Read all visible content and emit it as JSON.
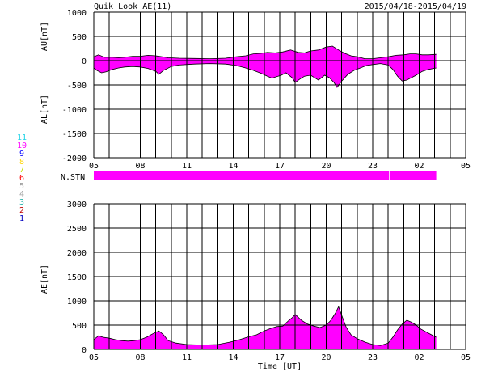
{
  "header": {
    "title": "Quik Look AE(11)",
    "date_range": "2015/04/18-2015/04/19"
  },
  "colors": {
    "fill": "#ff00ff",
    "grid": "#000000",
    "background": "#ffffff",
    "stn_marker": "#ffe0ff"
  },
  "station_legend": {
    "items": [
      {
        "label": "11",
        "color": "#22d3e6"
      },
      {
        "label": "10",
        "color": "#ff00ff"
      },
      {
        "label": "9",
        "color": "#0000ff"
      },
      {
        "label": "8",
        "color": "#ffd400"
      },
      {
        "label": "7",
        "color": "#c0e000"
      },
      {
        "label": "6",
        "color": "#ff0000"
      },
      {
        "label": "5",
        "color": "#a0a0a0"
      },
      {
        "label": "4",
        "color": "#a0a0a0"
      },
      {
        "label": "3",
        "color": "#20b2aa"
      },
      {
        "label": "2",
        "color": "#c00000"
      },
      {
        "label": "1",
        "color": "#0000c0"
      }
    ]
  },
  "nstn": {
    "label": "N.STN",
    "start_hour": 5,
    "end_hour": 27.1,
    "marker_hour": 24.05
  },
  "chart_data": [
    {
      "type": "area",
      "title": "",
      "ylabel_top": "AU[nT]",
      "ylabel_bottom": "AL[nT]",
      "xlabel": "",
      "xlim": [
        5,
        29
      ],
      "ylim": [
        -2000,
        1000
      ],
      "ytick_values": [
        1000,
        500,
        0,
        -500,
        -1000,
        -1500,
        -2000
      ],
      "xtick_labels": [
        "05",
        "08",
        "11",
        "14",
        "17",
        "20",
        "23",
        "02",
        "05"
      ],
      "series": [
        {
          "role": "AU",
          "x": [
            5.0,
            5.3,
            5.7,
            6.2,
            6.6,
            7.0,
            7.5,
            8.0,
            8.5,
            9.0,
            9.4,
            9.8,
            10.5,
            11.5,
            12.5,
            13.5,
            14.2,
            14.8,
            15.3,
            15.8,
            16.2,
            16.7,
            17.2,
            17.7,
            18.2,
            18.6,
            19.0,
            19.5,
            20.0,
            20.4,
            20.8,
            21.2,
            21.6,
            22.0,
            22.5,
            23.0,
            23.5,
            24.0,
            24.5,
            25.0,
            25.4,
            25.8,
            26.2,
            26.6,
            27.1
          ],
          "values": [
            80,
            120,
            70,
            70,
            60,
            70,
            90,
            90,
            110,
            100,
            80,
            60,
            50,
            45,
            40,
            50,
            80,
            100,
            140,
            150,
            170,
            160,
            180,
            220,
            170,
            160,
            200,
            220,
            280,
            300,
            220,
            150,
            100,
            80,
            40,
            40,
            60,
            80,
            110,
            120,
            140,
            140,
            120,
            120,
            130
          ]
        },
        {
          "role": "AL",
          "x": [
            5.0,
            5.2,
            5.5,
            5.8,
            6.2,
            6.6,
            7.0,
            7.5,
            8.0,
            8.5,
            9.0,
            9.2,
            9.5,
            10.0,
            10.5,
            11.5,
            12.5,
            13.5,
            14.2,
            14.8,
            15.3,
            15.8,
            16.2,
            16.5,
            16.8,
            17.1,
            17.4,
            17.8,
            18.0,
            18.3,
            18.6,
            19.0,
            19.5,
            19.9,
            20.2,
            20.5,
            20.7,
            21.0,
            21.4,
            21.8,
            22.2,
            22.6,
            23.0,
            23.5,
            24.0,
            24.3,
            24.6,
            24.9,
            25.2,
            25.5,
            25.8,
            26.2,
            26.6,
            27.1
          ],
          "values": [
            -150,
            -200,
            -250,
            -230,
            -180,
            -150,
            -130,
            -120,
            -130,
            -160,
            -220,
            -280,
            -200,
            -120,
            -90,
            -70,
            -60,
            -70,
            -100,
            -150,
            -200,
            -260,
            -320,
            -360,
            -330,
            -300,
            -250,
            -350,
            -450,
            -380,
            -320,
            -300,
            -400,
            -300,
            -350,
            -450,
            -550,
            -420,
            -280,
            -200,
            -150,
            -100,
            -80,
            -60,
            -90,
            -180,
            -320,
            -420,
            -400,
            -350,
            -300,
            -220,
            -180,
            -150
          ]
        }
      ]
    },
    {
      "type": "area",
      "title": "",
      "ylabel": "AE[nT]",
      "xlabel": "Time [UT]",
      "xlim": [
        5,
        29
      ],
      "ylim": [
        0,
        3000
      ],
      "ytick_values": [
        3000,
        2500,
        2000,
        1500,
        1000,
        500,
        0
      ],
      "xtick_labels": [
        "05",
        "08",
        "11",
        "14",
        "17",
        "20",
        "23",
        "02",
        "05"
      ],
      "series": [
        {
          "role": "AE",
          "x": [
            5.0,
            5.3,
            5.6,
            6.0,
            6.4,
            6.8,
            7.2,
            7.6,
            8.0,
            8.4,
            8.8,
            9.2,
            9.5,
            9.8,
            10.3,
            11.0,
            12.0,
            13.0,
            13.8,
            14.4,
            15.0,
            15.5,
            16.0,
            16.4,
            16.8,
            17.2,
            17.6,
            17.8,
            18.0,
            18.4,
            18.8,
            19.2,
            19.6,
            20.0,
            20.3,
            20.6,
            20.8,
            21.0,
            21.3,
            21.6,
            22.0,
            22.5,
            23.0,
            23.5,
            24.0,
            24.3,
            24.6,
            24.9,
            25.2,
            25.5,
            25.8,
            26.1,
            26.5,
            26.8,
            27.1
          ],
          "values": [
            200,
            280,
            250,
            230,
            200,
            180,
            170,
            180,
            200,
            250,
            320,
            380,
            300,
            180,
            130,
            100,
            90,
            100,
            150,
            200,
            260,
            300,
            380,
            430,
            470,
            480,
            600,
            650,
            720,
            600,
            520,
            480,
            450,
            500,
            600,
            750,
            880,
            700,
            450,
            300,
            220,
            150,
            100,
            80,
            130,
            250,
            400,
            520,
            600,
            560,
            500,
            420,
            350,
            300,
            250
          ]
        }
      ]
    }
  ]
}
